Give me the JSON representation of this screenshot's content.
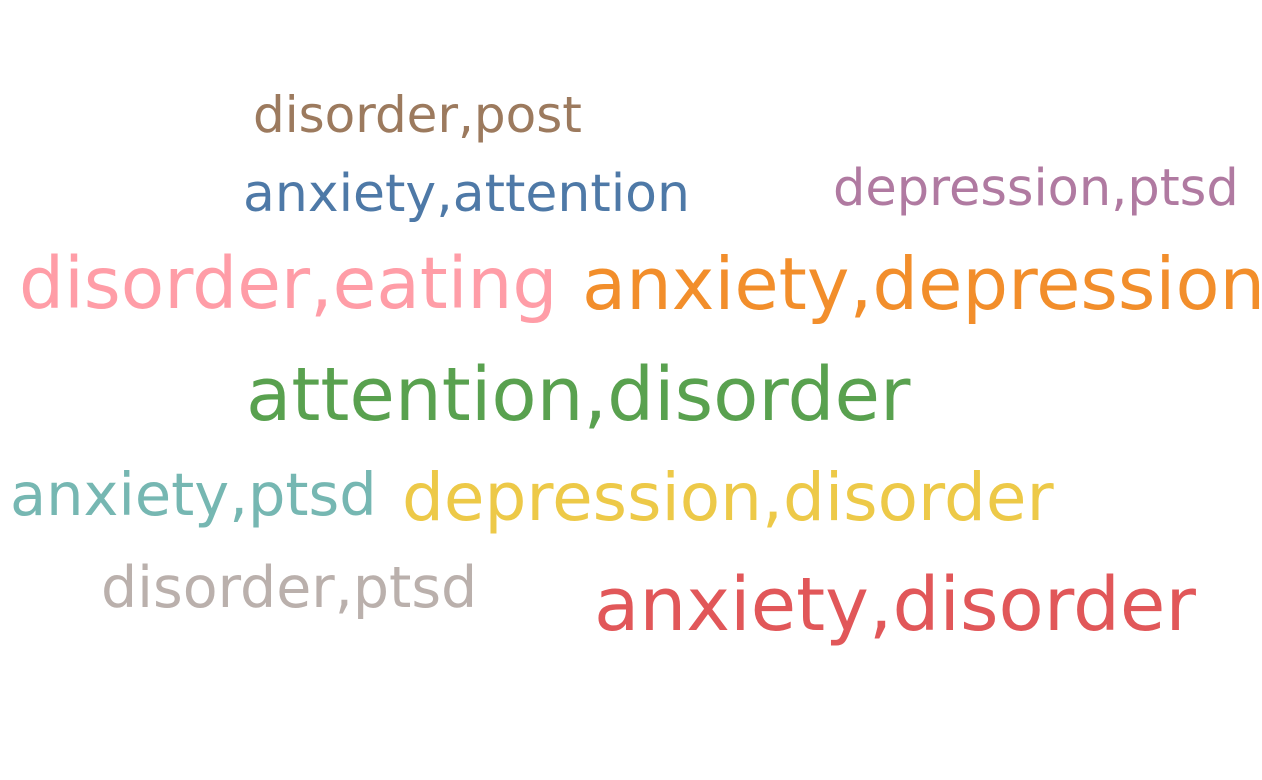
{
  "wordcloud": {
    "words": [
      {
        "text": "disorder,post",
        "color": "#9c7a5e"
      },
      {
        "text": "anxiety,attention",
        "color": "#4e79a7"
      },
      {
        "text": "depression,ptsd",
        "color": "#b07aa1"
      },
      {
        "text": "disorder,eating",
        "color": "#ff9da7"
      },
      {
        "text": "anxiety,depression",
        "color": "#f28e2b"
      },
      {
        "text": "attention,disorder",
        "color": "#59a14f"
      },
      {
        "text": "anxiety,ptsd",
        "color": "#76b7b2"
      },
      {
        "text": "depression,disorder",
        "color": "#edc948"
      },
      {
        "text": "disorder,ptsd",
        "color": "#bab0ac"
      },
      {
        "text": "anxiety,disorder",
        "color": "#e15759"
      }
    ]
  }
}
